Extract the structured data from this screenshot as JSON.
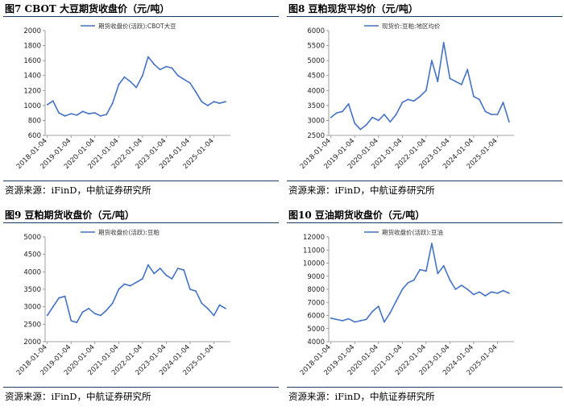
{
  "chart_data": [
    {
      "type": "line",
      "title": "图7  CBOT 大豆期货收盘价（元/吨）",
      "source": "资源来源：iFinD，中航证券研究所",
      "series": [
        {
          "name": "期货收盘价(活跃):CBOT大豆",
          "color": "#4472c4",
          "x": [
            "2018-01-04",
            "2018-04-01",
            "2018-07-01",
            "2018-10-01",
            "2019-01-04",
            "2019-04-01",
            "2019-07-01",
            "2019-10-01",
            "2020-01-04",
            "2020-04-01",
            "2020-07-01",
            "2020-10-01",
            "2021-01-04",
            "2021-04-01",
            "2021-07-01",
            "2021-10-01",
            "2022-01-04",
            "2022-04-01",
            "2022-07-01",
            "2022-10-01",
            "2023-01-04",
            "2023-04-01",
            "2023-07-01",
            "2023-10-01",
            "2024-01-04",
            "2024-04-01",
            "2024-07-01",
            "2024-10-01",
            "2025-01-04",
            "2025-04-01",
            "2025-07-01"
          ],
          "values": [
            1010,
            1060,
            900,
            860,
            890,
            870,
            920,
            890,
            900,
            860,
            880,
            1030,
            1280,
            1380,
            1320,
            1240,
            1400,
            1650,
            1550,
            1480,
            1520,
            1500,
            1400,
            1350,
            1300,
            1180,
            1050,
            1000,
            1050,
            1030,
            1050
          ]
        }
      ],
      "x_ticks": [
        "2018-01-04",
        "2019-01-04",
        "2020-01-04",
        "2021-01-04",
        "2022-01-04",
        "2023-01-04",
        "2024-01-04",
        "2025-01-04"
      ],
      "ylim": [
        600,
        2000
      ],
      "y_ticks": [
        600,
        800,
        1000,
        1200,
        1400,
        1600,
        1800,
        2000
      ],
      "legend": "top"
    },
    {
      "type": "line",
      "title": "图8  豆粕现货平均价（元/吨）",
      "source": "资源来源：iFinD，中航证券研究所",
      "series": [
        {
          "name": "现货价:豆粕:地区均价",
          "color": "#4472c4",
          "x": [
            "2018-01-04",
            "2018-04-01",
            "2018-07-01",
            "2018-10-01",
            "2019-01-04",
            "2019-04-01",
            "2019-07-01",
            "2019-10-01",
            "2020-01-04",
            "2020-04-01",
            "2020-07-01",
            "2020-10-01",
            "2021-01-04",
            "2021-04-01",
            "2021-07-01",
            "2021-10-01",
            "2022-01-04",
            "2022-04-01",
            "2022-07-01",
            "2022-10-01",
            "2023-01-04",
            "2023-04-01",
            "2023-07-01",
            "2023-10-01",
            "2024-01-04",
            "2024-04-01",
            "2024-07-01",
            "2024-10-01",
            "2025-01-04",
            "2025-04-01",
            "2025-07-01"
          ],
          "values": [
            3100,
            3250,
            3300,
            3550,
            2900,
            2700,
            2850,
            3100,
            3000,
            3200,
            2950,
            3200,
            3600,
            3700,
            3650,
            3800,
            4000,
            5000,
            4300,
            5600,
            4400,
            4300,
            4200,
            4700,
            3800,
            3700,
            3300,
            3200,
            3200,
            3600,
            2950
          ]
        }
      ],
      "x_ticks": [
        "2018-01-04",
        "2019-01-04",
        "2020-01-04",
        "2021-01-04",
        "2022-01-04",
        "2023-01-04",
        "2024-01-04",
        "2025-01-04"
      ],
      "ylim": [
        2500,
        6000
      ],
      "y_ticks": [
        2500,
        3000,
        3500,
        4000,
        4500,
        5000,
        5500,
        6000
      ],
      "legend": "top"
    },
    {
      "type": "line",
      "title": "图9  豆粕期货收盘价（元/吨）",
      "source": "资源来源：iFinD，中航证券研究所",
      "series": [
        {
          "name": "期货收盘价(活跃):豆粕",
          "color": "#4472c4",
          "x": [
            "2018-01-04",
            "2018-04-01",
            "2018-07-01",
            "2018-10-01",
            "2019-01-04",
            "2019-04-01",
            "2019-07-01",
            "2019-10-01",
            "2020-01-04",
            "2020-04-01",
            "2020-07-01",
            "2020-10-01",
            "2021-01-04",
            "2021-04-01",
            "2021-07-01",
            "2021-10-01",
            "2022-01-04",
            "2022-04-01",
            "2022-07-01",
            "2022-10-01",
            "2023-01-04",
            "2023-04-01",
            "2023-07-01",
            "2023-10-01",
            "2024-01-04",
            "2024-04-01",
            "2024-07-01",
            "2024-10-01",
            "2025-01-04",
            "2025-04-01",
            "2025-07-01"
          ],
          "values": [
            2750,
            3000,
            3250,
            3300,
            2600,
            2550,
            2850,
            2950,
            2800,
            2750,
            2900,
            3100,
            3500,
            3650,
            3600,
            3700,
            3800,
            4200,
            3950,
            4100,
            3900,
            3800,
            4100,
            4050,
            3500,
            3450,
            3100,
            2950,
            2750,
            3050,
            2950
          ]
        }
      ],
      "x_ticks": [
        "2018-01-04",
        "2019-01-04",
        "2020-01-04",
        "2021-01-04",
        "2022-01-04",
        "2023-01-04",
        "2024-01-04",
        "2025-01-04"
      ],
      "ylim": [
        2000,
        5000
      ],
      "y_ticks": [
        2000,
        2500,
        3000,
        3500,
        4000,
        4500,
        5000
      ],
      "legend": "top"
    },
    {
      "type": "line",
      "title": "图10  豆油期货收盘价（元/吨）",
      "source": "资源来源：iFinD，中航证券研究所",
      "series": [
        {
          "name": "期货收盘价(活跃):豆油",
          "color": "#4472c4",
          "x": [
            "2018-01-04",
            "2018-04-01",
            "2018-07-01",
            "2018-10-01",
            "2019-01-04",
            "2019-04-01",
            "2019-07-01",
            "2019-10-01",
            "2020-01-04",
            "2020-04-01",
            "2020-07-01",
            "2020-10-01",
            "2021-01-04",
            "2021-04-01",
            "2021-07-01",
            "2021-10-01",
            "2022-01-04",
            "2022-04-01",
            "2022-07-01",
            "2022-10-01",
            "2023-01-04",
            "2023-04-01",
            "2023-07-01",
            "2023-10-01",
            "2024-01-04",
            "2024-04-01",
            "2024-07-01",
            "2024-10-01",
            "2025-01-04",
            "2025-04-01",
            "2025-07-01"
          ],
          "values": [
            5800,
            5700,
            5600,
            5750,
            5500,
            5600,
            5700,
            6300,
            6700,
            5500,
            6200,
            7100,
            8000,
            8500,
            8700,
            9500,
            9400,
            11500,
            9200,
            9800,
            8700,
            8000,
            8300,
            8000,
            7600,
            7800,
            7500,
            7800,
            7700,
            7900,
            7700
          ]
        }
      ],
      "x_ticks": [
        "2018-01-04",
        "2019-01-04",
        "2020-01-04",
        "2021-01-04",
        "2022-01-04",
        "2023-01-04",
        "2024-01-04",
        "2025-01-04"
      ],
      "ylim": [
        4000,
        12000
      ],
      "y_ticks": [
        4000,
        5000,
        6000,
        7000,
        8000,
        9000,
        10000,
        11000,
        12000
      ],
      "legend": "top"
    }
  ]
}
